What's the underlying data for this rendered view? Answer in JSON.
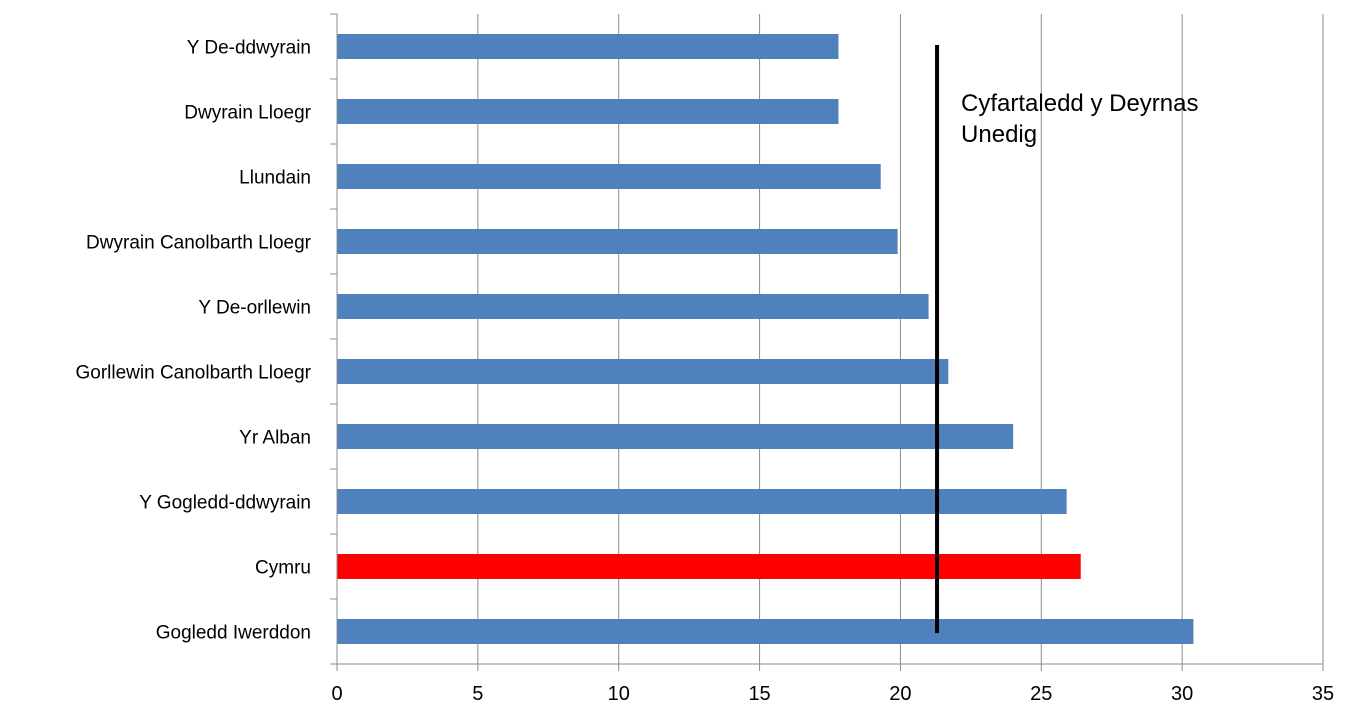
{
  "chart_data": {
    "type": "bar",
    "orientation": "horizontal",
    "categories": [
      "Y De-ddwyrain",
      "Dwyrain Lloegr",
      "Llundain",
      "Dwyrain Canolbarth Lloegr",
      "Y De-orllewin",
      "Gorllewin Canolbarth Lloegr",
      "Yr Alban",
      "Y Gogledd-ddwyrain",
      "Cymru",
      "Gogledd Iwerddon"
    ],
    "values": [
      17.8,
      17.8,
      19.3,
      19.9,
      21.0,
      21.7,
      24.0,
      25.9,
      26.4,
      30.4
    ],
    "highlight_category": "Cymru",
    "colors": {
      "bar": "#4F81BD",
      "highlight": "#FF0000",
      "reference_line": "#000000",
      "grid": "#8C8C8C"
    },
    "xlim": [
      0,
      35
    ],
    "xticks": [
      0,
      5,
      10,
      15,
      20,
      25,
      30,
      35
    ],
    "grid": true,
    "reference_line": {
      "value": 21.3,
      "label_lines": [
        "Cyfartaledd y Deyrnas",
        "Unedig"
      ]
    },
    "title": "",
    "xlabel": "",
    "ylabel": ""
  }
}
